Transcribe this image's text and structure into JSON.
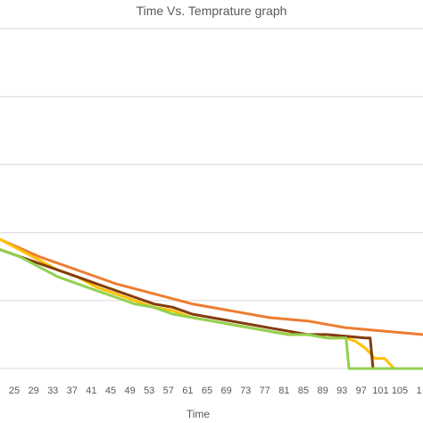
{
  "chart_data": {
    "type": "line",
    "title": "Time Vs. Temprature graph",
    "xlabel": "Time",
    "ylabel": "",
    "x_ticks": [
      "25",
      "29",
      "33",
      "37",
      "41",
      "45",
      "49",
      "53",
      "57",
      "61",
      "65",
      "69",
      "73",
      "77",
      "81",
      "85",
      "89",
      "93",
      "97",
      "101",
      "105",
      "1"
    ],
    "xlim": [
      21,
      109
    ],
    "ylim": [
      0,
      100
    ],
    "y_gridlines": [
      0,
      20,
      40,
      60,
      80,
      100
    ],
    "grid": true,
    "legend": "none",
    "series": [
      {
        "color": "#ed7d31",
        "x": [
          21,
          29,
          37,
          45,
          53,
          61,
          69,
          77,
          85,
          93,
          101,
          109
        ],
        "y": [
          38,
          33,
          29,
          25,
          22,
          19,
          17,
          15,
          14,
          12,
          11,
          10
        ]
      },
      {
        "color": "#ffc000",
        "x": [
          21,
          25,
          29,
          33,
          37,
          41,
          45,
          49,
          53,
          57,
          61,
          65,
          69,
          73,
          77,
          81,
          85,
          89,
          93,
          95,
          97,
          99,
          101,
          103,
          109
        ],
        "y": [
          38,
          35,
          32,
          29,
          27,
          24,
          22,
          20,
          18,
          17,
          15,
          14,
          13,
          12,
          11,
          10,
          10,
          9,
          9,
          8,
          6,
          3,
          3,
          0,
          0
        ]
      },
      {
        "color": "#843c0c",
        "x": [
          21,
          25,
          29,
          33,
          37,
          41,
          45,
          49,
          53,
          57,
          61,
          65,
          69,
          73,
          77,
          81,
          85,
          89,
          93,
          97,
          98,
          98.6,
          109
        ],
        "y": [
          35,
          33,
          31,
          29,
          27,
          25,
          23,
          21,
          19,
          18,
          16,
          15,
          14,
          13,
          12,
          11,
          10,
          10,
          9.5,
          9,
          9,
          0,
          0
        ]
      },
      {
        "color": "#92d050",
        "x": [
          21,
          25,
          29,
          33,
          37,
          41,
          45,
          49,
          53,
          57,
          61,
          65,
          69,
          73,
          77,
          81,
          85,
          89,
          93,
          93.6,
          109
        ],
        "y": [
          35,
          33,
          30,
          27,
          25,
          23,
          21,
          19,
          18,
          16,
          15,
          14,
          13,
          12,
          11,
          10,
          10,
          9,
          9,
          0,
          0
        ]
      }
    ]
  }
}
